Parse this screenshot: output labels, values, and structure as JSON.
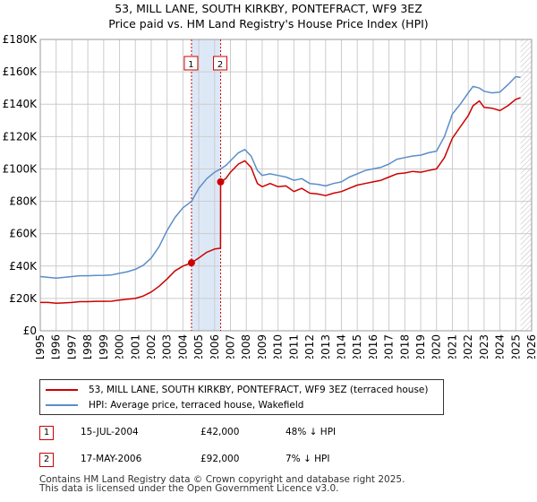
{
  "title": "53, MILL LANE, SOUTH KIRKBY, PONTEFRACT, WF9 3EZ",
  "subtitle": "Price paid vs. HM Land Registry's House Price Index (HPI)",
  "colors": {
    "property": "#cc0000",
    "hpi": "#5b8dc9",
    "shade": "#dde8f7",
    "grid": "#cccccc"
  },
  "chart_data": {
    "type": "line",
    "xlim": [
      1995,
      2026
    ],
    "ylim": [
      0,
      180000
    ],
    "ytick_values": [
      0,
      20000,
      40000,
      60000,
      80000,
      100000,
      120000,
      140000,
      160000,
      180000
    ],
    "ytick_labels": [
      "£0",
      "£20K",
      "£40K",
      "£60K",
      "£80K",
      "£100K",
      "£120K",
      "£140K",
      "£160K",
      "£180K"
    ],
    "xtick_labels": [
      "1995",
      "1996",
      "1997",
      "1998",
      "1999",
      "2000",
      "2001",
      "2002",
      "2003",
      "2004",
      "2005",
      "2006",
      "2007",
      "2008",
      "2009",
      "2010",
      "2011",
      "2012",
      "2013",
      "2014",
      "2015",
      "2016",
      "2017",
      "2018",
      "2019",
      "2020",
      "2021",
      "2022",
      "2023",
      "2024",
      "2025",
      "2026"
    ],
    "shaded_range": [
      2004.54,
      2006.38
    ],
    "future_hatch_from": 2025.3,
    "series": [
      {
        "name": "53, MILL LANE, SOUTH KIRKBY, PONTEFRACT, WF9 3EZ (terraced house)",
        "x": [
          1995,
          1995.5,
          1996,
          1996.5,
          1997,
          1997.5,
          1998,
          1998.5,
          1999,
          1999.5,
          2000,
          2000.5,
          2001,
          2001.5,
          2002,
          2002.5,
          2003,
          2003.5,
          2004,
          2004.54,
          2005,
          2005.5,
          2006,
          2006.37,
          2006.38,
          2006.7,
          2007,
          2007.5,
          2007.9,
          2008.3,
          2008.7,
          2009,
          2009.5,
          2010,
          2010.5,
          2011,
          2011.5,
          2012,
          2012.5,
          2013,
          2013.5,
          2014,
          2014.5,
          2015,
          2015.5,
          2016,
          2016.5,
          2017,
          2017.5,
          2018,
          2018.5,
          2019,
          2019.5,
          2020,
          2020.5,
          2021,
          2021.5,
          2022,
          2022.3,
          2022.7,
          2023,
          2023.5,
          2024,
          2024.5,
          2025,
          2025.3
        ],
        "y": [
          17500,
          17500,
          17000,
          17200,
          17500,
          18000,
          18000,
          18200,
          18200,
          18300,
          19000,
          19500,
          20000,
          21500,
          24000,
          27500,
          32000,
          37000,
          40000,
          42000,
          45000,
          48500,
          50500,
          51000,
          92000,
          94000,
          98000,
          103000,
          105000,
          101000,
          91000,
          89000,
          91000,
          89000,
          89500,
          86000,
          88000,
          85000,
          84500,
          83500,
          85000,
          86000,
          88000,
          90000,
          91000,
          92000,
          93000,
          95000,
          97000,
          97500,
          98500,
          98000,
          99000,
          100000,
          107000,
          119000,
          126000,
          133000,
          139000,
          142000,
          138000,
          137500,
          136000,
          139000,
          143000,
          144000
        ]
      },
      {
        "name": "HPI: Average price, terraced house, Wakefield",
        "x": [
          1995,
          1995.5,
          1996,
          1996.5,
          1997,
          1997.5,
          1998,
          1998.5,
          1999,
          1999.5,
          2000,
          2000.5,
          2001,
          2001.5,
          2002,
          2002.5,
          2003,
          2003.5,
          2004,
          2004.54,
          2005,
          2005.5,
          2006,
          2006.38,
          2006.7,
          2007,
          2007.5,
          2007.9,
          2008.3,
          2008.7,
          2009,
          2009.5,
          2010,
          2010.5,
          2011,
          2011.5,
          2012,
          2012.5,
          2013,
          2013.5,
          2014,
          2014.5,
          2015,
          2015.5,
          2016,
          2016.5,
          2017,
          2017.5,
          2018,
          2018.5,
          2019,
          2019.5,
          2020,
          2020.5,
          2021,
          2021.5,
          2022,
          2022.3,
          2022.7,
          2023,
          2023.5,
          2024,
          2024.5,
          2025,
          2025.3
        ],
        "y": [
          33500,
          33000,
          32500,
          33000,
          33500,
          34000,
          34000,
          34200,
          34300,
          34500,
          35500,
          36500,
          38000,
          40500,
          45000,
          52000,
          62000,
          70000,
          76000,
          80000,
          88000,
          94000,
          98000,
          100000,
          102000,
          105000,
          110000,
          112000,
          108000,
          99000,
          96000,
          97000,
          96000,
          95000,
          93000,
          94000,
          91000,
          90500,
          89500,
          91000,
          92000,
          95000,
          97000,
          99000,
          100000,
          101000,
          103000,
          106000,
          107000,
          108000,
          108500,
          110000,
          111000,
          120000,
          134000,
          140000,
          147000,
          151000,
          150000,
          148000,
          147000,
          147500,
          152000,
          157000,
          156500
        ]
      }
    ],
    "sales": [
      {
        "label": "1",
        "x": 2004.54,
        "y": 42000
      },
      {
        "label": "2",
        "x": 2006.38,
        "y": 92000
      }
    ]
  },
  "legend": {
    "property_label": "53, MILL LANE, SOUTH KIRKBY, PONTEFRACT, WF9 3EZ (terraced house)",
    "hpi_label": "HPI: Average price, terraced house, Wakefield"
  },
  "sales_table": [
    {
      "num": "1",
      "date": "15-JUL-2004",
      "price": "£42,000",
      "hpi": "48% ↓ HPI"
    },
    {
      "num": "2",
      "date": "17-MAY-2006",
      "price": "£92,000",
      "hpi": "7% ↓ HPI"
    }
  ],
  "footer": {
    "line1": "Contains HM Land Registry data © Crown copyright and database right 2025.",
    "line2": "This data is licensed under the Open Government Licence v3.0."
  }
}
